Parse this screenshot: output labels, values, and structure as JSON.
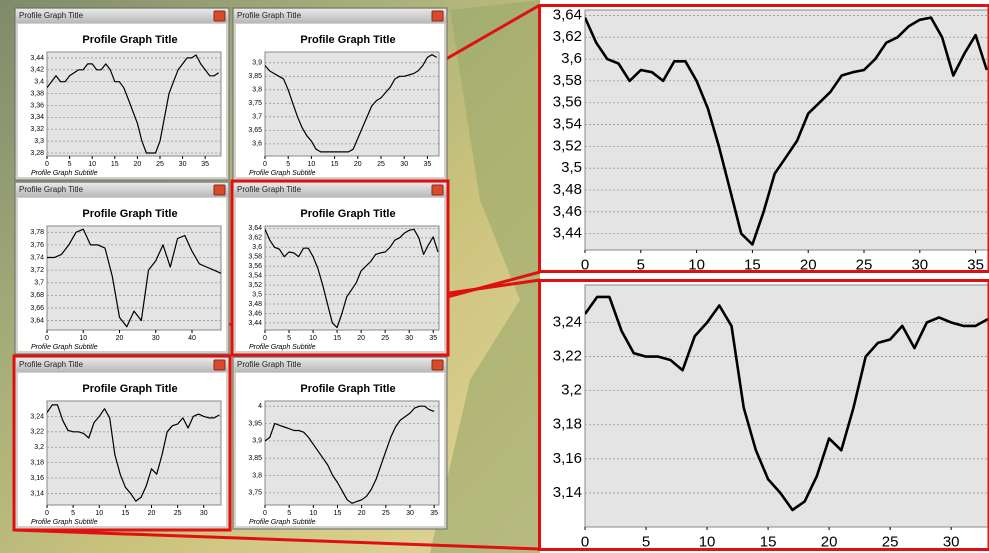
{
  "chart_data": [
    {
      "type": "line",
      "window_title": "Profile Graph Title",
      "title": "Profile Graph Title",
      "subtitle": "Profile Graph Subtitle",
      "color": "#000000",
      "grid": true,
      "x": [
        0,
        1,
        2,
        3,
        4,
        5,
        6,
        7,
        8,
        9,
        10,
        11,
        12,
        13,
        14,
        15,
        16,
        17,
        18,
        19,
        20,
        21,
        22,
        23,
        24,
        25,
        26,
        27,
        28,
        29,
        30,
        31,
        32,
        33,
        34,
        35,
        36,
        37,
        38
      ],
      "values": [
        3.39,
        3.4,
        3.41,
        3.4,
        3.4,
        3.41,
        3.415,
        3.42,
        3.42,
        3.43,
        3.43,
        3.42,
        3.42,
        3.43,
        3.42,
        3.4,
        3.4,
        3.39,
        3.37,
        3.35,
        3.33,
        3.3,
        3.28,
        3.28,
        3.28,
        3.3,
        3.34,
        3.38,
        3.4,
        3.42,
        3.43,
        3.44,
        3.44,
        3.445,
        3.43,
        3.42,
        3.41,
        3.41,
        3.415
      ],
      "xlim": [
        0,
        38.5
      ],
      "xticks": [
        0,
        5,
        10,
        15,
        20,
        25,
        30,
        35
      ],
      "ylim": [
        3.275,
        3.45
      ],
      "yticks": [
        {
          "value": 3.28,
          "label": "3,28"
        },
        {
          "value": 3.3,
          "label": "3,3"
        },
        {
          "value": 3.32,
          "label": "3,32"
        },
        {
          "value": 3.34,
          "label": "3,34"
        },
        {
          "value": 3.36,
          "label": "3,36"
        },
        {
          "value": 3.38,
          "label": "3,38"
        },
        {
          "value": 3.4,
          "label": "3,4"
        },
        {
          "value": 3.42,
          "label": "3,42"
        },
        {
          "value": 3.44,
          "label": "3,44"
        }
      ]
    },
    {
      "type": "line",
      "window_title": "Profile Graph Title",
      "title": "Profile Graph Title",
      "subtitle": "Profile Graph Subtitle",
      "color": "#000000",
      "grid": true,
      "x": [
        0,
        1,
        2,
        3,
        4,
        5,
        6,
        7,
        8,
        9,
        10,
        11,
        12,
        13,
        14,
        15,
        16,
        17,
        18,
        19,
        20,
        21,
        22,
        23,
        24,
        25,
        26,
        27,
        28,
        29,
        30,
        31,
        32,
        33,
        34,
        35,
        36,
        37
      ],
      "values": [
        3.89,
        3.87,
        3.86,
        3.85,
        3.84,
        3.8,
        3.75,
        3.7,
        3.66,
        3.63,
        3.61,
        3.58,
        3.57,
        3.57,
        3.57,
        3.57,
        3.57,
        3.57,
        3.57,
        3.58,
        3.62,
        3.66,
        3.7,
        3.74,
        3.76,
        3.77,
        3.79,
        3.81,
        3.84,
        3.85,
        3.85,
        3.855,
        3.86,
        3.87,
        3.89,
        3.92,
        3.93,
        3.92
      ],
      "xlim": [
        0,
        37.5
      ],
      "xticks": [
        0,
        5,
        10,
        15,
        20,
        25,
        30,
        35
      ],
      "ylim": [
        3.555,
        3.94
      ],
      "yticks": [
        {
          "value": 3.6,
          "label": "3,6"
        },
        {
          "value": 3.65,
          "label": "3,65"
        },
        {
          "value": 3.7,
          "label": "3,7"
        },
        {
          "value": 3.75,
          "label": "3,75"
        },
        {
          "value": 3.8,
          "label": "3,8"
        },
        {
          "value": 3.85,
          "label": "3,85"
        },
        {
          "value": 3.9,
          "label": "3,9"
        }
      ]
    },
    {
      "type": "line",
      "window_title": "Profile Graph Title",
      "title": "Profile Graph Title",
      "subtitle": "Profile Graph Subtitle",
      "color": "#000000",
      "grid": true,
      "x": [
        0,
        2,
        4,
        6,
        8,
        10,
        12,
        14,
        16,
        18,
        20,
        22,
        24,
        26,
        28,
        30,
        32,
        34,
        36,
        38,
        40,
        42,
        44,
        46,
        48
      ],
      "values": [
        3.74,
        3.74,
        3.745,
        3.76,
        3.78,
        3.785,
        3.76,
        3.76,
        3.755,
        3.71,
        3.645,
        3.63,
        3.655,
        3.64,
        3.72,
        3.735,
        3.76,
        3.725,
        3.77,
        3.775,
        3.75,
        3.73,
        3.725,
        3.72,
        3.715
      ],
      "xlim": [
        0,
        48
      ],
      "xticks": [
        0,
        10,
        20,
        30,
        40
      ],
      "ylim": [
        3.625,
        3.79
      ],
      "yticks": [
        {
          "value": 3.64,
          "label": "3,64"
        },
        {
          "value": 3.66,
          "label": "3,66"
        },
        {
          "value": 3.68,
          "label": "3,68"
        },
        {
          "value": 3.7,
          "label": "3,7"
        },
        {
          "value": 3.72,
          "label": "3,72"
        },
        {
          "value": 3.74,
          "label": "3,74"
        },
        {
          "value": 3.76,
          "label": "3,76"
        },
        {
          "value": 3.78,
          "label": "3,78"
        }
      ]
    },
    {
      "type": "line",
      "window_title": "Profile Graph Title",
      "title": "Profile Graph Title",
      "subtitle": "Profile Graph Subtitle",
      "color": "#000000",
      "grid": true,
      "x": [
        0,
        1,
        2,
        3,
        4,
        5,
        6,
        7,
        8,
        9,
        10,
        11,
        12,
        13,
        14,
        15,
        16,
        17,
        18,
        19,
        20,
        21,
        22,
        23,
        24,
        25,
        26,
        27,
        28,
        29,
        30,
        31,
        32,
        33,
        34,
        35,
        36
      ],
      "values": [
        3.638,
        3.615,
        3.6,
        3.596,
        3.58,
        3.59,
        3.588,
        3.58,
        3.598,
        3.598,
        3.58,
        3.555,
        3.52,
        3.48,
        3.44,
        3.43,
        3.46,
        3.495,
        3.51,
        3.525,
        3.55,
        3.56,
        3.57,
        3.585,
        3.588,
        3.59,
        3.6,
        3.615,
        3.62,
        3.63,
        3.636,
        3.638,
        3.62,
        3.585,
        3.605,
        3.622,
        3.59
      ],
      "xlim": [
        0,
        36.2
      ],
      "xticks": [
        0,
        5,
        10,
        15,
        20,
        25,
        30,
        35
      ],
      "ylim": [
        3.425,
        3.645
      ],
      "yticks": [
        {
          "value": 3.44,
          "label": "3,44"
        },
        {
          "value": 3.46,
          "label": "3,46"
        },
        {
          "value": 3.48,
          "label": "3,48"
        },
        {
          "value": 3.5,
          "label": "3,5"
        },
        {
          "value": 3.52,
          "label": "3,52"
        },
        {
          "value": 3.54,
          "label": "3,54"
        },
        {
          "value": 3.56,
          "label": "3,56"
        },
        {
          "value": 3.58,
          "label": "3,58"
        },
        {
          "value": 3.6,
          "label": "3,6"
        },
        {
          "value": 3.62,
          "label": "3,62"
        },
        {
          "value": 3.64,
          "label": "3,64"
        }
      ]
    },
    {
      "type": "line",
      "window_title": "Profile Graph Title",
      "title": "Profile Graph Title",
      "subtitle": "Profile Graph Subtitle",
      "color": "#000000",
      "grid": true,
      "x": [
        0,
        1,
        2,
        3,
        4,
        5,
        6,
        7,
        8,
        9,
        10,
        11,
        12,
        13,
        14,
        15,
        16,
        17,
        18,
        19,
        20,
        21,
        22,
        23,
        24,
        25,
        26,
        27,
        28,
        29,
        30,
        31,
        32,
        33
      ],
      "values": [
        3.245,
        3.255,
        3.255,
        3.235,
        3.222,
        3.22,
        3.22,
        3.218,
        3.212,
        3.232,
        3.24,
        3.25,
        3.238,
        3.19,
        3.165,
        3.148,
        3.14,
        3.13,
        3.135,
        3.15,
        3.172,
        3.165,
        3.19,
        3.22,
        3.228,
        3.23,
        3.238,
        3.225,
        3.24,
        3.243,
        3.24,
        3.238,
        3.238,
        3.242
      ],
      "xlim": [
        0,
        33.3
      ],
      "xticks": [
        0,
        5,
        10,
        15,
        20,
        25,
        30
      ],
      "ylim": [
        3.125,
        3.26
      ],
      "yticks": [
        {
          "value": 3.14,
          "label": "3,14"
        },
        {
          "value": 3.16,
          "label": "3,16"
        },
        {
          "value": 3.18,
          "label": "3,18"
        },
        {
          "value": 3.2,
          "label": "3,2"
        },
        {
          "value": 3.22,
          "label": "3,22"
        },
        {
          "value": 3.24,
          "label": "3,24"
        }
      ]
    },
    {
      "type": "line",
      "window_title": "Profile Graph Title",
      "title": "Profile Graph Title",
      "subtitle": "Profile Graph Subtitle",
      "color": "#000000",
      "grid": true,
      "x": [
        0,
        1,
        2,
        3,
        4,
        5,
        6,
        7,
        8,
        9,
        10,
        11,
        12,
        13,
        14,
        15,
        16,
        17,
        18,
        19,
        20,
        21,
        22,
        23,
        24,
        25,
        26,
        27,
        28,
        29,
        30,
        31,
        32,
        33,
        34,
        35
      ],
      "values": [
        3.9,
        3.91,
        3.95,
        3.945,
        3.94,
        3.935,
        3.93,
        3.93,
        3.925,
        3.91,
        3.89,
        3.87,
        3.85,
        3.83,
        3.8,
        3.78,
        3.755,
        3.73,
        3.72,
        3.725,
        3.73,
        3.74,
        3.76,
        3.79,
        3.83,
        3.87,
        3.91,
        3.94,
        3.96,
        3.97,
        3.98,
        3.995,
        4.0,
        4.0,
        3.99,
        3.985
      ],
      "xlim": [
        0,
        36
      ],
      "xticks": [
        0,
        5,
        10,
        15,
        20,
        25,
        30,
        35
      ],
      "ylim": [
        3.715,
        4.015
      ],
      "yticks": [
        {
          "value": 3.75,
          "label": "3,75"
        },
        {
          "value": 3.8,
          "label": "3,8"
        },
        {
          "value": 3.85,
          "label": "3,85"
        },
        {
          "value": 3.9,
          "label": "3,9"
        },
        {
          "value": 3.95,
          "label": "3,95"
        },
        {
          "value": 4,
          "label": "4"
        }
      ]
    },
    {
      "type": "line",
      "color": "#000000",
      "grid": true,
      "x": [
        0,
        1,
        2,
        3,
        4,
        5,
        6,
        7,
        8,
        9,
        10,
        11,
        12,
        13,
        14,
        15,
        16,
        17,
        18,
        19,
        20,
        21,
        22,
        23,
        24,
        25,
        26,
        27,
        28,
        29,
        30,
        31,
        32,
        33,
        34,
        35,
        36
      ],
      "values": [
        3.638,
        3.615,
        3.6,
        3.596,
        3.58,
        3.59,
        3.588,
        3.58,
        3.598,
        3.598,
        3.58,
        3.555,
        3.52,
        3.48,
        3.44,
        3.43,
        3.46,
        3.495,
        3.51,
        3.525,
        3.55,
        3.56,
        3.57,
        3.585,
        3.588,
        3.59,
        3.6,
        3.615,
        3.62,
        3.63,
        3.636,
        3.638,
        3.62,
        3.585,
        3.605,
        3.622,
        3.59
      ],
      "xlim": [
        0,
        36.2
      ],
      "xticks": [
        0,
        5,
        10,
        15,
        20,
        25,
        30,
        35
      ],
      "ylim": [
        3.425,
        3.645
      ],
      "yticks": [
        {
          "value": 3.44,
          "label": "3,44"
        },
        {
          "value": 3.46,
          "label": "3,46"
        },
        {
          "value": 3.48,
          "label": "3,48"
        },
        {
          "value": 3.5,
          "label": "3,5"
        },
        {
          "value": 3.52,
          "label": "3,52"
        },
        {
          "value": 3.54,
          "label": "3,54"
        },
        {
          "value": 3.56,
          "label": "3,56"
        },
        {
          "value": 3.58,
          "label": "3,58"
        },
        {
          "value": 3.6,
          "label": "3,6"
        },
        {
          "value": 3.62,
          "label": "3,62"
        },
        {
          "value": 3.64,
          "label": "3,64"
        }
      ]
    },
    {
      "type": "line",
      "color": "#000000",
      "grid": true,
      "x": [
        0,
        1,
        2,
        3,
        4,
        5,
        6,
        7,
        8,
        9,
        10,
        11,
        12,
        13,
        14,
        15,
        16,
        17,
        18,
        19,
        20,
        21,
        22,
        23,
        24,
        25,
        26,
        27,
        28,
        29,
        30,
        31,
        32,
        33
      ],
      "values": [
        3.245,
        3.255,
        3.255,
        3.235,
        3.222,
        3.22,
        3.22,
        3.218,
        3.212,
        3.232,
        3.24,
        3.25,
        3.238,
        3.19,
        3.165,
        3.148,
        3.14,
        3.13,
        3.135,
        3.15,
        3.172,
        3.165,
        3.19,
        3.22,
        3.228,
        3.23,
        3.238,
        3.225,
        3.24,
        3.243,
        3.24,
        3.238,
        3.238,
        3.242
      ],
      "xlim": [
        0,
        33.1
      ],
      "xticks": [
        0,
        5,
        10,
        15,
        20,
        25,
        30
      ],
      "ylim": [
        3.12,
        3.262
      ],
      "yticks": [
        {
          "value": 3.14,
          "label": "3,14"
        },
        {
          "value": 3.16,
          "label": "3,16"
        },
        {
          "value": 3.18,
          "label": "3,18"
        },
        {
          "value": 3.2,
          "label": "3,2"
        },
        {
          "value": 3.22,
          "label": "3,22"
        },
        {
          "value": 3.24,
          "label": "3,24"
        }
      ]
    }
  ]
}
